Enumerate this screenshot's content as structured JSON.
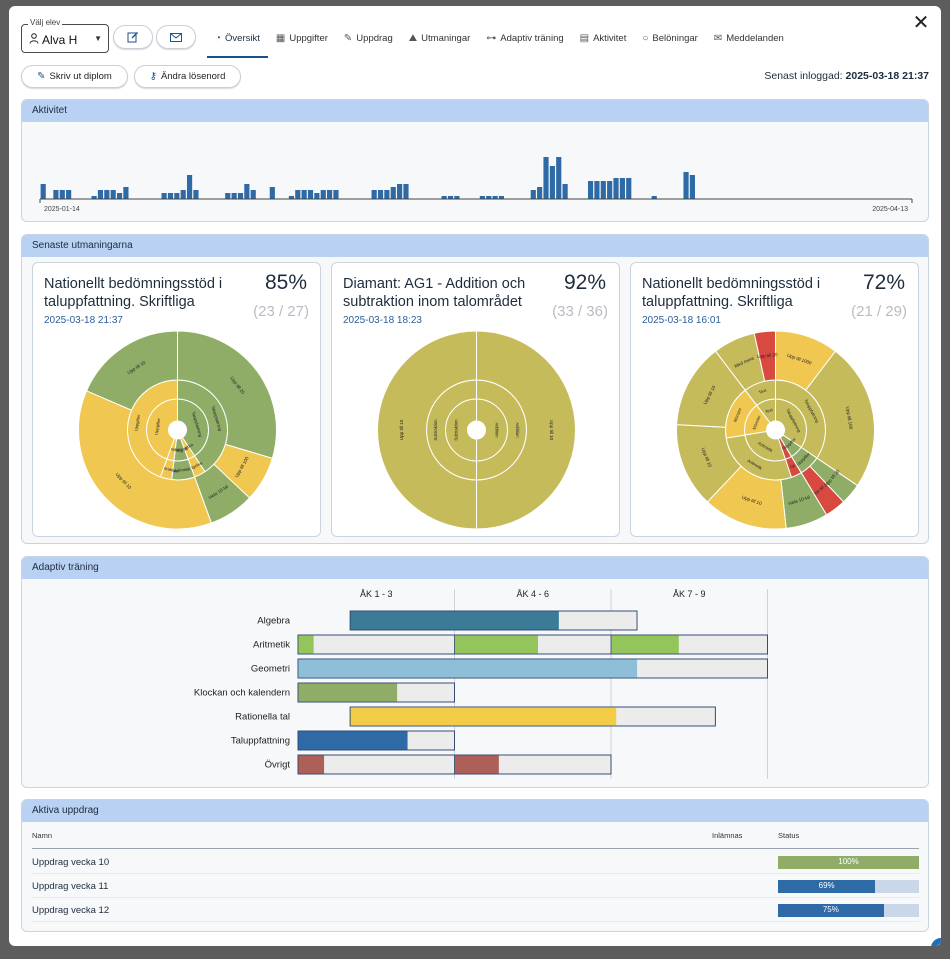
{
  "student_select": {
    "label": "Välj elev",
    "value": "Alva H"
  },
  "tabs": [
    {
      "label": "Översikt",
      "icon": "gauge-icon"
    },
    {
      "label": "Uppgifter",
      "icon": "table-icon"
    },
    {
      "label": "Uppdrag",
      "icon": "edit-icon"
    },
    {
      "label": "Utmaningar",
      "icon": "mountain-icon"
    },
    {
      "label": "Adaptiv träning",
      "icon": "dumbbell-icon"
    },
    {
      "label": "Aktivitet",
      "icon": "chart-icon"
    },
    {
      "label": "Belöningar",
      "icon": "medal-icon"
    },
    {
      "label": "Meddelanden",
      "icon": "envelope-icon"
    }
  ],
  "actions": {
    "print_diploma": "Skriv ut diplom",
    "change_password": "Ändra lösenord"
  },
  "last_login": {
    "label": "Senast inloggad:",
    "value": "2025-03-18 21:37"
  },
  "activity": {
    "title": "Aktivitet",
    "start_label": "2025-01-14",
    "end_label": "2025-04-13",
    "chart_data": {
      "type": "bar",
      "x_start": "2025-01-14",
      "x_end": "2025-04-13",
      "values": [
        5,
        0,
        3,
        3,
        3,
        0,
        0,
        0,
        1,
        3,
        3,
        3,
        2,
        4,
        0,
        0,
        0,
        0,
        0,
        2,
        2,
        2,
        3,
        8,
        3,
        0,
        0,
        0,
        0,
        2,
        2,
        2,
        5,
        3,
        0,
        0,
        4,
        0,
        0,
        1,
        3,
        3,
        3,
        2,
        3,
        3,
        3,
        0,
        0,
        0,
        0,
        0,
        3,
        3,
        3,
        4,
        5,
        5,
        0,
        0,
        0,
        0,
        0,
        1,
        1,
        1,
        0,
        0,
        0,
        1,
        1,
        1,
        1,
        0,
        0,
        0,
        0,
        3,
        4,
        14,
        11,
        14,
        5,
        0,
        0,
        0,
        6,
        6,
        6,
        6,
        7,
        7,
        7,
        0,
        0,
        0,
        1,
        0,
        0,
        0,
        0,
        9,
        8,
        0,
        0,
        0,
        0,
        0,
        0,
        0,
        0,
        0,
        0,
        0,
        0,
        0,
        0,
        0,
        0,
        0,
        0,
        0,
        0,
        0,
        0,
        0,
        0,
        0,
        0,
        0,
        0,
        0,
        0,
        0,
        0,
        0,
        0
      ]
    }
  },
  "challenges": {
    "title": "Senaste utmaningarna",
    "cards": [
      {
        "title": "Nationellt bedömningsstöd i taluppfattning. Skriftliga",
        "percent": "85%",
        "fraction": "(23 / 27)",
        "date": "2025-03-18 21:37",
        "chart_data": {
          "type": "sunburst",
          "inner": [
            {
              "label": "Taluppfattning",
              "value": 11,
              "color": "#8fad66"
            },
            {
              "label": "Algebra",
              "value": 1,
              "color": "#f0c750"
            },
            {
              "label": "Aritmetik",
              "value": 2,
              "color": "#8fad66"
            },
            {
              "label": "Subtraktion",
              "value": 1,
              "color": "#f0c750"
            },
            {
              "label": "Uppgifter",
              "value": 12,
              "color": "#f0c750"
            }
          ],
          "middle": [
            {
              "label": "Taluppfattning",
              "value": 11,
              "color": "#8fad66"
            },
            {
              "label": "Algebra",
              "value": 1,
              "color": "#f0c750"
            },
            {
              "label": "Aritmetik",
              "value": 2,
              "color": "#8fad66"
            },
            {
              "label": "Subtraktion",
              "value": 1,
              "color": "#f0c750"
            },
            {
              "label": "Uppgifter",
              "value": 12,
              "color": "#f0c750"
            }
          ],
          "outer": [
            {
              "label": "Upp till 20",
              "value": 8,
              "color": "#8fad66"
            },
            {
              "label": "Upp till 100",
              "value": 2,
              "color": "#f0c750"
            },
            {
              "label": "Hela 10-tal",
              "value": 2,
              "color": "#8fad66"
            },
            {
              "label": "Upp till 10",
              "value": 10,
              "color": "#f0c750"
            },
            {
              "label": "Upp till 10",
              "value": 5,
              "color": "#8fad66"
            }
          ]
        }
      },
      {
        "title": "Diamant: AG1 - Addition och subtraktion inom talområdet",
        "percent": "92%",
        "fraction": "(33 / 36)",
        "date": "2025-03-18 18:23",
        "chart_data": {
          "type": "sunburst",
          "inner": [
            {
              "label": "Addition",
              "value": 18,
              "color": "#c5bb5a"
            },
            {
              "label": "Subtraktion",
              "value": 18,
              "color": "#c5bb5a"
            }
          ],
          "middle": [
            {
              "label": "Addition",
              "value": 18,
              "color": "#c5bb5a"
            },
            {
              "label": "Subtraktion",
              "value": 18,
              "color": "#c5bb5a"
            }
          ],
          "outer": [
            {
              "label": "Upp till 10",
              "value": 18,
              "color": "#c5bb5a"
            },
            {
              "label": "Upp till 10",
              "value": 18,
              "color": "#c5bb5a"
            }
          ]
        }
      },
      {
        "title": "Nationellt bedömningsstöd i taluppfattning. Skriftliga",
        "percent": "72%",
        "fraction": "(21 / 29)",
        "date": "2025-03-18 16:01",
        "chart_data": {
          "type": "sunburst",
          "inner": [
            {
              "label": "Taluppfattning",
              "value": 10,
              "color": "#c5bb5a"
            },
            {
              "label": "Uppgifter",
              "value": 2,
              "color": "#8fad66"
            },
            {
              "label": "Tal",
              "value": 1,
              "color": "#d84a3f"
            },
            {
              "label": "Aritmetik",
              "value": 8,
              "color": "#c5bb5a"
            },
            {
              "label": "Mönster",
              "value": 5,
              "color": "#f0c750"
            },
            {
              "label": "Text",
              "value": 3,
              "color": "#c5bb5a"
            }
          ],
          "middle": [
            {
              "label": "Taluppfattning",
              "value": 10,
              "color": "#c5bb5a"
            },
            {
              "label": "Uppgifter",
              "value": 2,
              "color": "#8fad66"
            },
            {
              "label": "Tal",
              "value": 1,
              "color": "#d84a3f"
            },
            {
              "label": "Aritmetik",
              "value": 8,
              "color": "#c5bb5a"
            },
            {
              "label": "Mönster",
              "value": 5,
              "color": "#f0c750"
            },
            {
              "label": "Text",
              "value": 3,
              "color": "#c5bb5a"
            }
          ],
          "outer": [
            {
              "label": "Upp till 1000",
              "value": 3,
              "color": "#f0c750"
            },
            {
              "label": "Upp till 100",
              "value": 7,
              "color": "#c5bb5a"
            },
            {
              "label": "Upp till 20",
              "value": 1,
              "color": "#8fad66"
            },
            {
              "label": "Upp till 20",
              "value": 1,
              "color": "#d84a3f"
            },
            {
              "label": "Hela 10-tal",
              "value": 2,
              "color": "#8fad66"
            },
            {
              "label": "Upp till 10",
              "value": 4,
              "color": "#f0c750"
            },
            {
              "label": "Upp till 10",
              "value": 4,
              "color": "#c5bb5a"
            },
            {
              "label": "Upp till 10",
              "value": 4,
              "color": "#c5bb5a"
            },
            {
              "label": "Med mera",
              "value": 2,
              "color": "#c5bb5a"
            },
            {
              "label": "Upp till 20",
              "value": 1,
              "color": "#d84a3f"
            }
          ]
        }
      }
    ]
  },
  "adaptive": {
    "title": "Adaptiv träning",
    "chart_data": {
      "type": "range-bar",
      "grades": [
        "ÅK 1 - 3",
        "ÅK 4 - 6",
        "ÅK 7 - 9"
      ],
      "x_unit": "grade",
      "xlim": [
        1,
        10
      ],
      "rows": [
        {
          "label": "Algebra",
          "start": 2.0,
          "end": 7.5,
          "progress_end": 6.0,
          "color": "#3b7b97",
          "segments": []
        },
        {
          "label": "Aritmetik",
          "start": 1.0,
          "end": 10.0,
          "color": "#94c55a",
          "segments": [
            [
              1.0,
              1.3
            ],
            [
              4.0,
              5.6
            ],
            [
              7.0,
              8.3
            ]
          ]
        },
        {
          "label": "Geometri",
          "start": 1.0,
          "end": 10.0,
          "progress_end": 7.5,
          "color": "#8fbfd8",
          "segments": []
        },
        {
          "label": "Klockan och kalendern",
          "start": 1.0,
          "end": 4.0,
          "progress_end": 2.9,
          "color": "#8fad66",
          "segments": []
        },
        {
          "label": "Rationella tal",
          "start": 2.0,
          "end": 9.0,
          "progress_end": 7.1,
          "color": "#f2cc47",
          "segments": []
        },
        {
          "label": "Taluppfattning",
          "start": 1.0,
          "end": 4.0,
          "progress_end": 3.1,
          "color": "#2d6aa6",
          "segments": []
        },
        {
          "label": "Övrigt",
          "start": 1.0,
          "end": 7.0,
          "color": "#ac6058",
          "segments": [
            [
              1.0,
              1.5
            ],
            [
              4.0,
              4.85
            ]
          ]
        }
      ]
    }
  },
  "assignments": {
    "title": "Aktiva uppdrag",
    "columns": {
      "name": "Namn",
      "due": "Inlämnas",
      "status": "Status"
    },
    "rows": [
      {
        "name": "Uppdrag vecka 10",
        "due": "",
        "status": "100%",
        "progress": 1.0,
        "color": "#8fad66"
      },
      {
        "name": "Uppdrag vecka 11",
        "due": "",
        "status": "69%",
        "progress": 0.69,
        "color": "#2d6aa6"
      },
      {
        "name": "Uppdrag vecka 12",
        "due": "",
        "status": "75%",
        "progress": 0.75,
        "color": "#2d6aa6"
      }
    ]
  }
}
